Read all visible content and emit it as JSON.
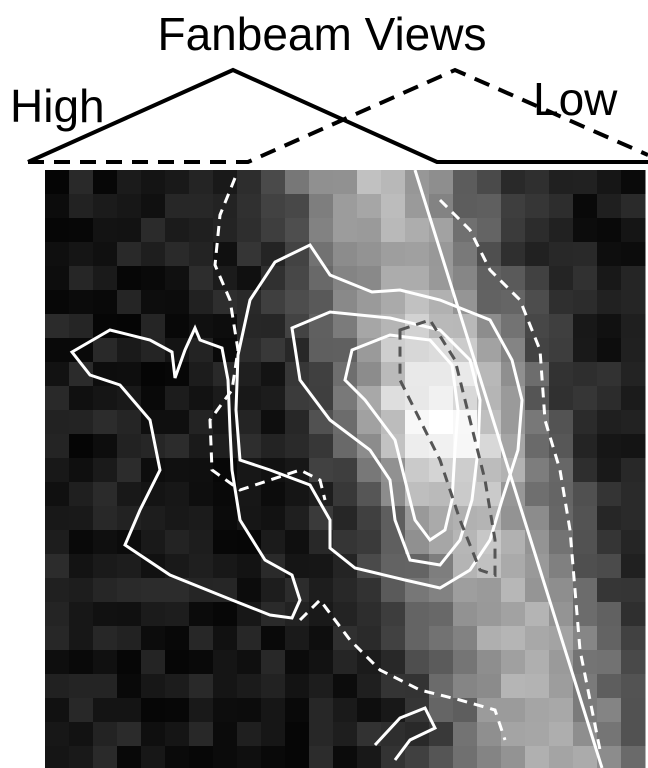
{
  "title": "Fanbeam Views",
  "labels": {
    "high": "High",
    "low": "Low"
  }
}
